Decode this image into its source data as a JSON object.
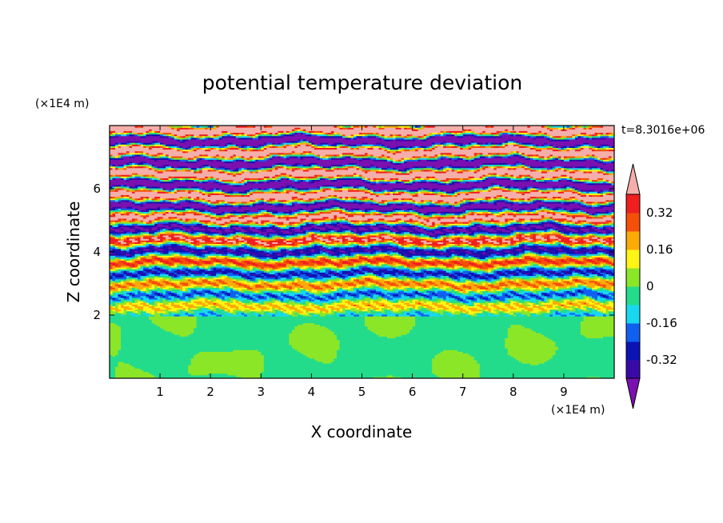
{
  "chart_data": {
    "type": "heatmap",
    "title": "potential temperature deviation",
    "xlabel": "X coordinate",
    "ylabel": "Z coordinate",
    "x_unit": "(×1E4 m)",
    "y_unit": "(×1E4 m)",
    "time_label": "t=8.3016e+06",
    "xlim": [
      0,
      10
    ],
    "ylim": [
      0,
      8
    ],
    "xticks": [
      1,
      2,
      3,
      4,
      5,
      6,
      7,
      8,
      9
    ],
    "yticks": [
      2,
      4,
      6
    ],
    "colorbar": {
      "levels": [
        -0.4,
        -0.32,
        -0.24,
        -0.16,
        -0.08,
        0,
        0.08,
        0.16,
        0.24,
        0.32,
        0.4
      ],
      "tick_labels": [
        "0.32",
        "0.16",
        "0",
        "-0.16",
        "-0.32"
      ],
      "tick_values": [
        0.32,
        0.16,
        0,
        -0.16,
        -0.32
      ],
      "colors": [
        "#7a10b0",
        "#3a0aa8",
        "#0a14b4",
        "#1060f0",
        "#18d8f0",
        "#22dc8c",
        "#8ce628",
        "#fff514",
        "#fcaa08",
        "#f5500a",
        "#f01e1e",
        "#f5aeaa"
      ],
      "extend": "both"
    },
    "structure": {
      "lower_layer_z_top": 2.0,
      "lower_layer_base_value": -0.04,
      "lower_layer_patch_value": 0.04,
      "upper_layer_z": [
        2.0,
        8.0
      ]
    }
  }
}
